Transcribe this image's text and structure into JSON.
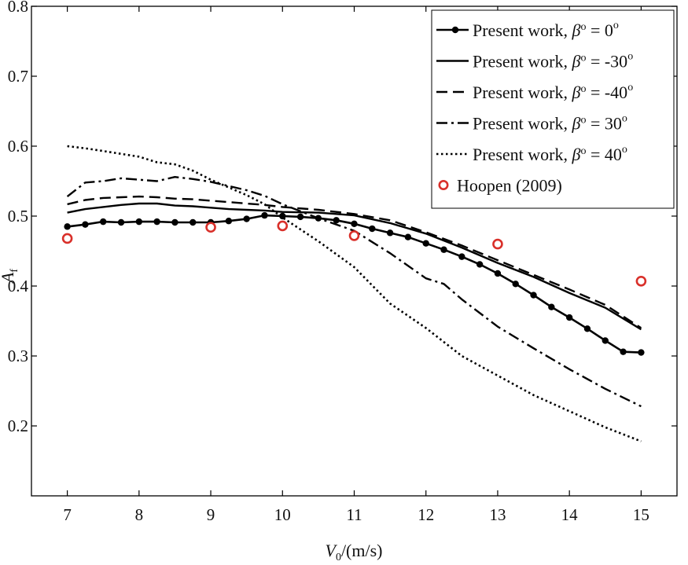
{
  "chart_data": {
    "type": "line",
    "title": "",
    "xlabel": {
      "base": "V",
      "sub": "0",
      "suffix": "/(m/s)"
    },
    "ylabel": {
      "base": "A",
      "sub": "f"
    },
    "xlim": [
      6.5,
      15.5
    ],
    "ylim": [
      0.1,
      0.8
    ],
    "xticks": [
      7,
      8,
      9,
      10,
      11,
      12,
      13,
      14,
      15
    ],
    "yticks": [
      0.2,
      0.3,
      0.4,
      0.5,
      0.6,
      0.7,
      0.8
    ],
    "grid": false,
    "legend_position": "top-right",
    "series": [
      {
        "name": "Present work, β° = 0°",
        "legend": {
          "prefix": "Present work, ",
          "beta": "β",
          "deg": "o",
          "mid": " = 0",
          "sup": "o"
        },
        "style": "solid-marker",
        "color": "#000000",
        "x": [
          7.0,
          7.25,
          7.5,
          7.75,
          8.0,
          8.25,
          8.5,
          8.75,
          9.0,
          9.25,
          9.5,
          9.75,
          10.0,
          10.25,
          10.5,
          10.75,
          11.0,
          11.25,
          11.5,
          11.75,
          12.0,
          12.25,
          12.5,
          12.75,
          13.0,
          13.25,
          13.5,
          13.75,
          14.0,
          14.25,
          14.5,
          14.75,
          15.0
        ],
        "y": [
          0.485,
          0.488,
          0.492,
          0.491,
          0.492,
          0.492,
          0.491,
          0.491,
          0.491,
          0.493,
          0.496,
          0.501,
          0.5,
          0.499,
          0.497,
          0.494,
          0.489,
          0.482,
          0.476,
          0.47,
          0.461,
          0.452,
          0.442,
          0.431,
          0.418,
          0.403,
          0.387,
          0.37,
          0.355,
          0.339,
          0.322,
          0.306,
          0.305
        ]
      },
      {
        "name": "Present work, β° = -30°",
        "legend": {
          "prefix": "Present work, ",
          "beta": "β",
          "deg": "o",
          "mid": " = -30",
          "sup": "o"
        },
        "style": "solid",
        "color": "#000000",
        "x": [
          7.0,
          7.25,
          7.5,
          7.75,
          8.0,
          8.25,
          8.5,
          8.75,
          9.0,
          9.25,
          9.5,
          9.75,
          10.0,
          10.5,
          11.0,
          11.5,
          12.0,
          12.5,
          13.0,
          13.5,
          14.0,
          14.5,
          15.0
        ],
        "y": [
          0.505,
          0.51,
          0.513,
          0.516,
          0.518,
          0.518,
          0.515,
          0.514,
          0.512,
          0.51,
          0.509,
          0.508,
          0.506,
          0.505,
          0.501,
          0.49,
          0.475,
          0.455,
          0.433,
          0.413,
          0.39,
          0.369,
          0.338
        ]
      },
      {
        "name": "Present work, β° = -40°",
        "legend": {
          "prefix": "Present work, ",
          "beta": "β",
          "deg": "o",
          "mid": " = -40",
          "sup": "o"
        },
        "style": "dashed",
        "color": "#000000",
        "x": [
          7.0,
          7.25,
          7.5,
          7.75,
          8.0,
          8.25,
          8.5,
          8.75,
          9.0,
          9.25,
          9.5,
          9.75,
          10.0,
          10.5,
          11.0,
          11.5,
          12.0,
          12.5,
          13.0,
          13.5,
          14.0,
          14.5,
          15.0
        ],
        "y": [
          0.517,
          0.523,
          0.526,
          0.527,
          0.528,
          0.527,
          0.525,
          0.524,
          0.522,
          0.52,
          0.518,
          0.516,
          0.513,
          0.509,
          0.503,
          0.494,
          0.477,
          0.458,
          0.437,
          0.416,
          0.395,
          0.373,
          0.34
        ]
      },
      {
        "name": "Present work, β° = 30°",
        "legend": {
          "prefix": "Present work, ",
          "beta": "β",
          "deg": "o",
          "mid": " = 30",
          "sup": "o"
        },
        "style": "dashdot",
        "color": "#000000",
        "x": [
          7.0,
          7.25,
          7.5,
          7.75,
          8.0,
          8.25,
          8.5,
          8.75,
          9.0,
          9.25,
          9.5,
          9.75,
          10.0,
          10.5,
          11.0,
          11.5,
          12.0,
          12.25,
          12.5,
          13.0,
          13.5,
          14.0,
          14.5,
          15.0
        ],
        "y": [
          0.528,
          0.548,
          0.55,
          0.554,
          0.552,
          0.55,
          0.556,
          0.553,
          0.549,
          0.543,
          0.537,
          0.529,
          0.517,
          0.497,
          0.479,
          0.447,
          0.411,
          0.403,
          0.381,
          0.342,
          0.311,
          0.281,
          0.253,
          0.228
        ]
      },
      {
        "name": "Present work, β° = 40°",
        "legend": {
          "prefix": "Present work, ",
          "beta": "β",
          "deg": "o",
          "mid": " = 40",
          "sup": "o"
        },
        "style": "dotted",
        "color": "#000000",
        "x": [
          7.0,
          7.25,
          7.5,
          7.75,
          8.0,
          8.25,
          8.5,
          8.75,
          9.0,
          9.25,
          9.5,
          9.75,
          10.0,
          10.5,
          11.0,
          11.5,
          12.0,
          12.5,
          13.0,
          13.5,
          14.0,
          14.5,
          15.0
        ],
        "y": [
          0.6,
          0.597,
          0.593,
          0.589,
          0.585,
          0.577,
          0.574,
          0.565,
          0.552,
          0.541,
          0.53,
          0.517,
          0.498,
          0.464,
          0.427,
          0.375,
          0.34,
          0.3,
          0.272,
          0.244,
          0.221,
          0.198,
          0.178
        ]
      },
      {
        "name": "Hoopen (2009)",
        "legend": {
          "prefix": "Hoopen (2009)"
        },
        "style": "hollow-circle",
        "color": "#d9302a",
        "x": [
          7,
          9,
          10,
          11,
          13,
          15
        ],
        "y": [
          0.468,
          0.484,
          0.486,
          0.472,
          0.46,
          0.407
        ]
      }
    ]
  }
}
